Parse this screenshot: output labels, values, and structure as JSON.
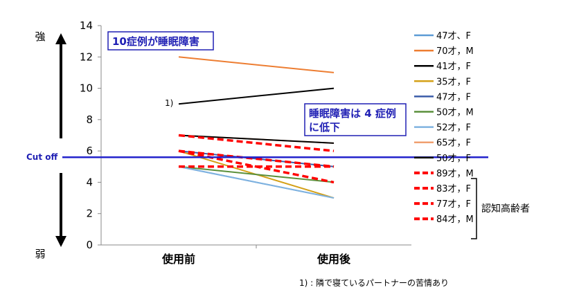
{
  "chart_data": {
    "type": "line",
    "categories": [
      "使用前",
      "使用後"
    ],
    "ylim": [
      0,
      14
    ],
    "yticks": [
      0,
      2,
      4,
      6,
      8,
      10,
      12,
      14
    ],
    "series": [
      {
        "name": "47才、F",
        "values": [
          5,
          3
        ],
        "color": "#5b9bd5",
        "dashed": false
      },
      {
        "name": "70才，M",
        "values": [
          12,
          11
        ],
        "color": "#ed7d31",
        "dashed": false
      },
      {
        "name": "41才，F",
        "values": [
          9,
          10
        ],
        "color": "#000000",
        "dashed": false
      },
      {
        "name": "35才，F",
        "values": [
          6,
          3
        ],
        "color": "#d4a017",
        "dashed": false
      },
      {
        "name": "47才，F",
        "values": [
          6,
          5
        ],
        "color": "#3a5ba8",
        "dashed": false
      },
      {
        "name": "50才，M",
        "values": [
          5,
          4
        ],
        "color": "#5a8f3a",
        "dashed": false
      },
      {
        "name": "52才，F",
        "values": [
          5,
          3
        ],
        "color": "#7fb2e0",
        "dashed": false
      },
      {
        "name": "65才，F",
        "values": [
          7,
          6.5
        ],
        "color": "#f0a070",
        "dashed": false
      },
      {
        "name": "50才，F",
        "values": [
          7,
          6.5
        ],
        "color": "#000000",
        "dashed": false
      },
      {
        "name": "89才，M",
        "values": [
          7,
          6
        ],
        "color": "#ff0000",
        "dashed": true
      },
      {
        "name": "83才，F",
        "values": [
          6,
          5
        ],
        "color": "#ff0000",
        "dashed": true
      },
      {
        "name": "77才，F",
        "values": [
          6,
          4
        ],
        "color": "#ff0000",
        "dashed": true
      },
      {
        "name": "84才，M",
        "values": [
          5,
          5
        ],
        "color": "#ff0000",
        "dashed": true
      }
    ],
    "cutoff": {
      "value": 5.6,
      "label": "Cut off",
      "color": "#2222cc"
    },
    "annotations": {
      "box1": "10症例が睡眠障害",
      "box2_line1": "睡眠障害は 4 症例",
      "box2_line2": "に低下",
      "point_marker": "1)",
      "footnote": "1) : 隣で寝ているパートナーの苦情あり",
      "bracket_label": "認知高齢者",
      "strong": "強",
      "weak": "弱"
    }
  }
}
